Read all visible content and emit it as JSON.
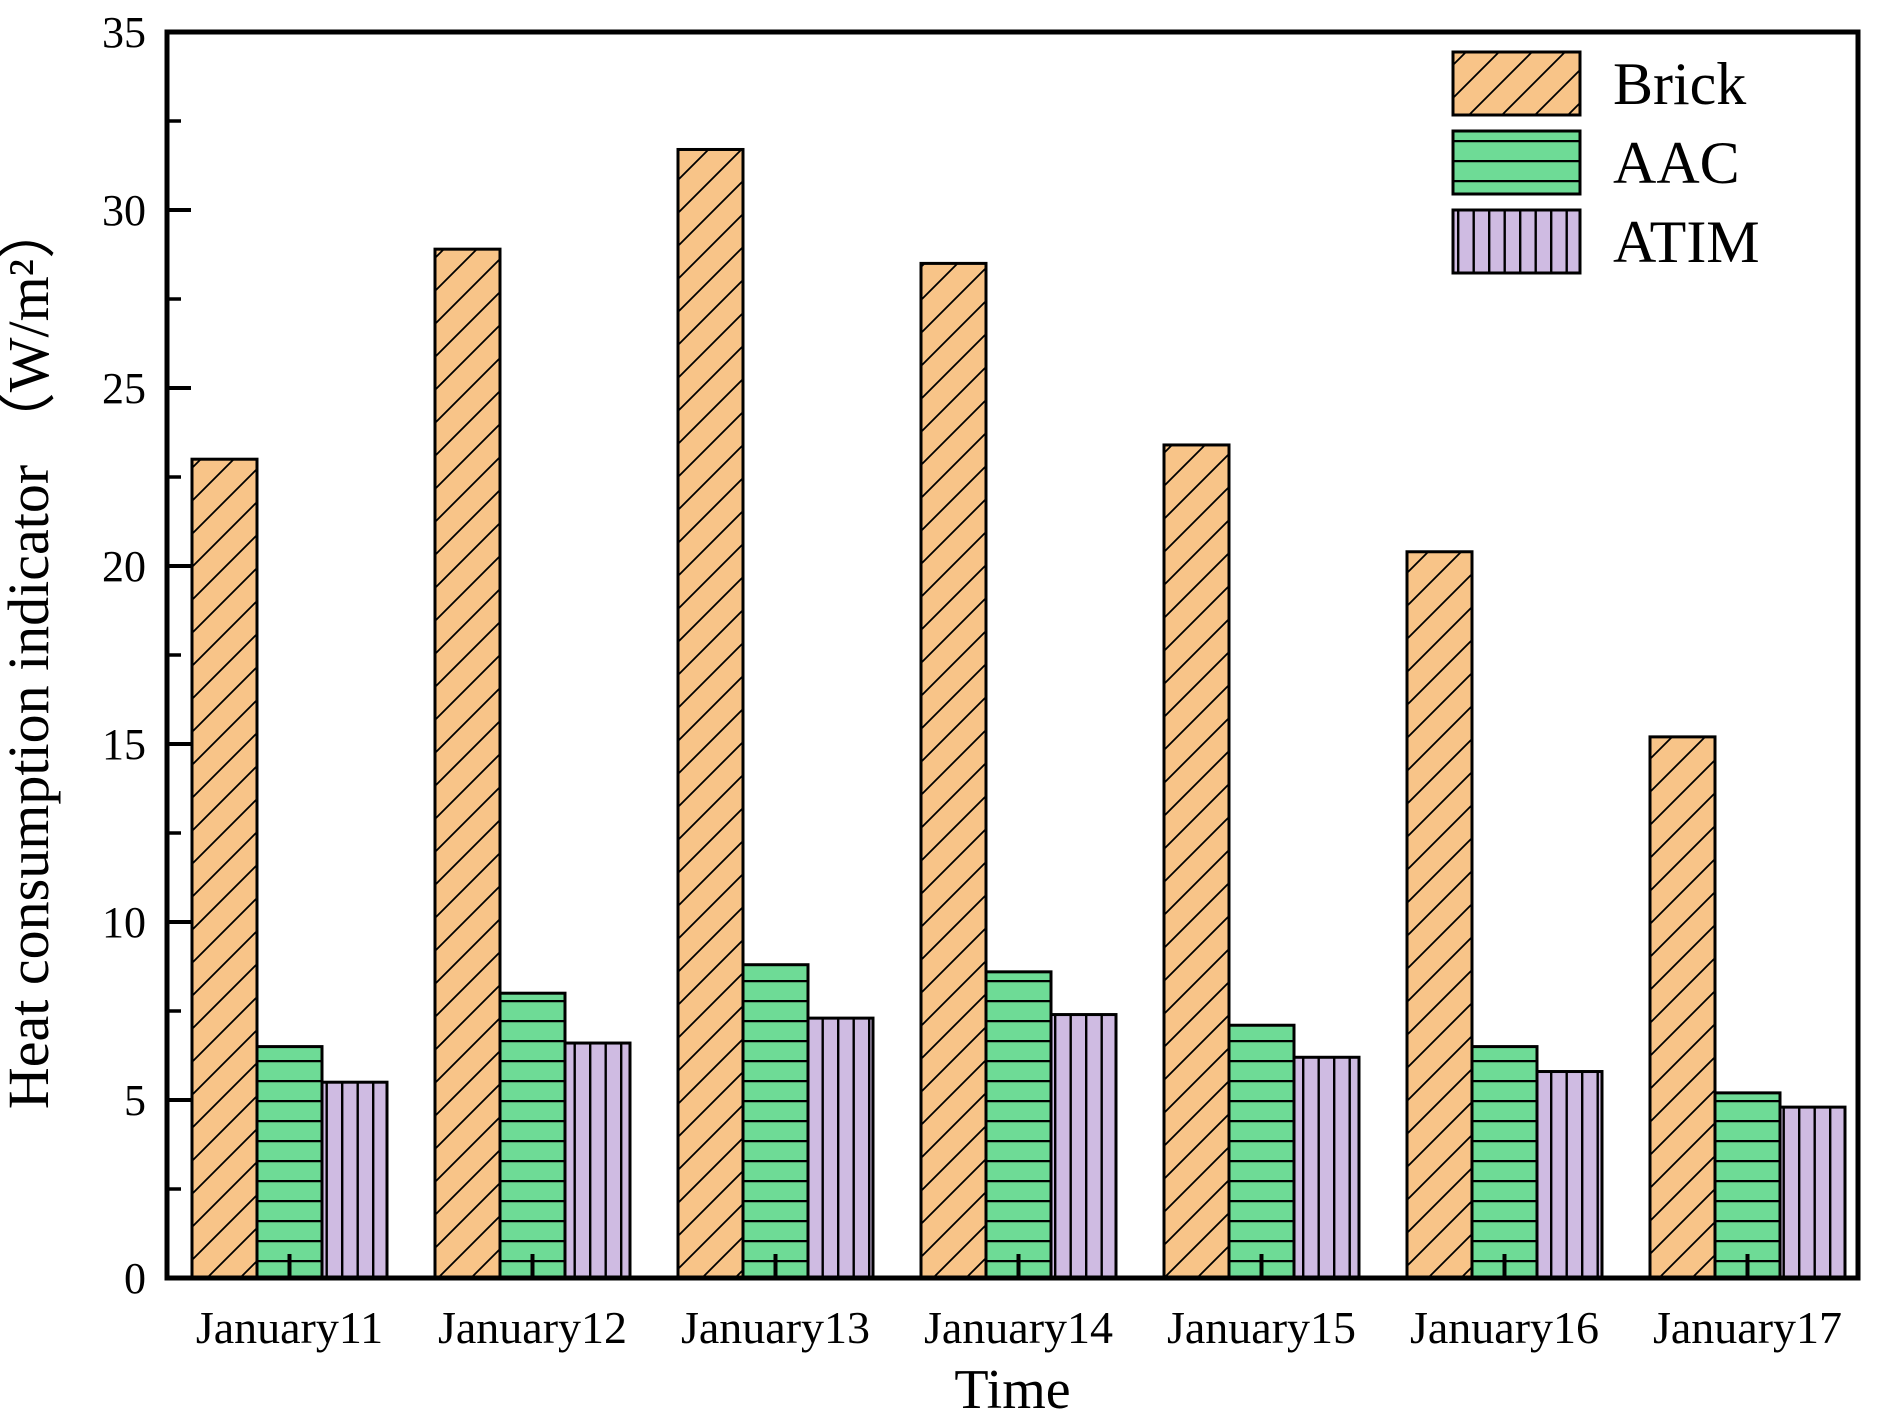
{
  "chart_data": {
    "type": "bar",
    "title": "",
    "xlabel": "Time",
    "ylabel": "Heat consumption indicator （W/m²）",
    "categories": [
      "January11",
      "January12",
      "January13",
      "January14",
      "January15",
      "January16",
      "January17"
    ],
    "series": [
      {
        "name": "Brick",
        "values": [
          23.0,
          28.9,
          31.7,
          28.5,
          23.4,
          20.4,
          15.2
        ],
        "fill": "#F8C488",
        "hatch": "diagonal"
      },
      {
        "name": "AAC",
        "values": [
          6.5,
          8.0,
          8.8,
          8.6,
          7.1,
          6.5,
          5.2
        ],
        "fill": "#6EDB96",
        "hatch": "horizontal"
      },
      {
        "name": "ATIM",
        "values": [
          5.5,
          6.6,
          7.3,
          7.4,
          6.2,
          5.8,
          4.8
        ],
        "fill": "#CFBBE2",
        "hatch": "vertical"
      }
    ],
    "ylim": [
      0,
      35
    ],
    "ytick_step": 5,
    "yminor_step": 2.5,
    "ytick_labels": [
      "0",
      "5",
      "10",
      "15",
      "20",
      "25",
      "30",
      "35"
    ],
    "legend_position": "top-right",
    "grid": false,
    "bar_edge_color": "#000000",
    "hatch_color": "#000000",
    "axis_color": "#000000"
  }
}
